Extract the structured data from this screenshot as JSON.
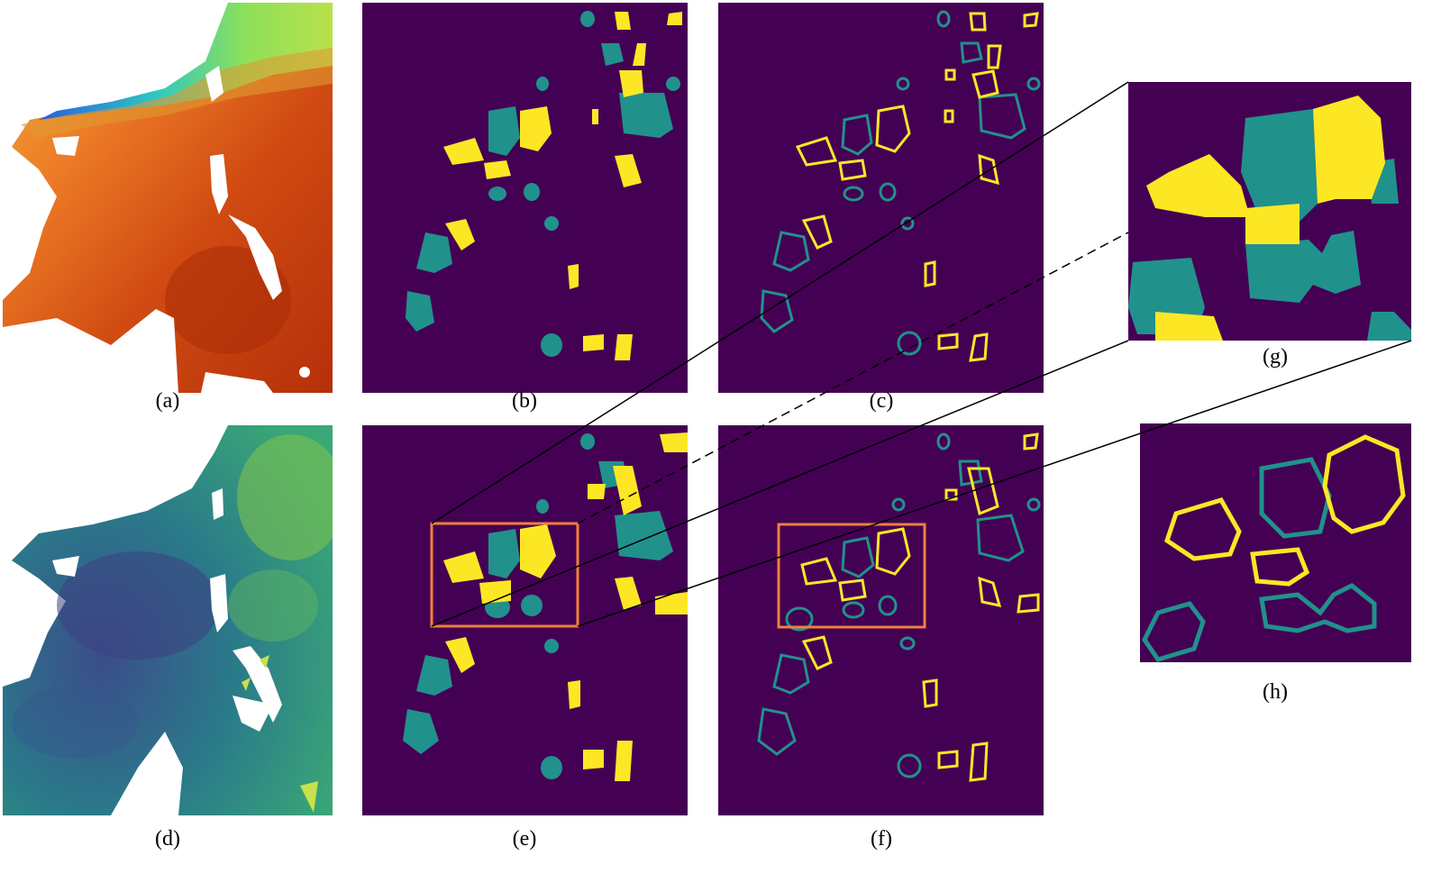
{
  "figure": {
    "captions": {
      "a": "(a)",
      "b": "(b)",
      "c": "(c)",
      "d": "(d)",
      "e": "(e)",
      "f": "(f)",
      "g": "(g)",
      "h": "(h)"
    },
    "colors": {
      "background": "#440154",
      "anticyclonic": "#fde725",
      "cyclonic": "#21918c",
      "zoom_box": "#f07f3c",
      "land": "#ffffff"
    },
    "panel_types": {
      "a": "sst-map",
      "b": "eddy-mask-filled",
      "c": "eddy-contours",
      "d": "sla-map",
      "e": "eddy-mask-filled-with-zoom-box",
      "f": "eddy-contours-with-zoom-box",
      "g": "zoom-filled",
      "h": "zoom-contours"
    }
  }
}
